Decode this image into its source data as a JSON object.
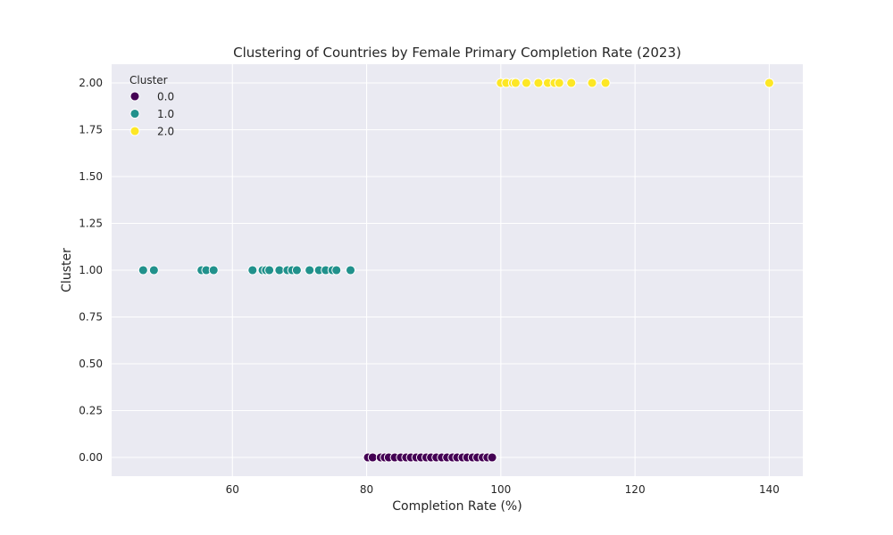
{
  "chart_data": {
    "type": "scatter",
    "title": "Clustering of Countries by Female Primary Completion Rate (2023)",
    "xlabel": "Completion Rate (%)",
    "ylabel": "Cluster",
    "xlim": [
      42,
      145
    ],
    "ylim": [
      -0.1,
      2.1
    ],
    "xticks": [
      60,
      80,
      100,
      120,
      140
    ],
    "yticks": [
      0.0,
      0.25,
      0.5,
      0.75,
      1.0,
      1.25,
      1.5,
      1.75,
      2.0
    ],
    "ytick_labels": [
      "0.00",
      "0.25",
      "0.50",
      "0.75",
      "1.00",
      "1.25",
      "1.50",
      "1.75",
      "2.00"
    ],
    "grid": true,
    "legend": {
      "title": "Cluster",
      "placement": "top-left",
      "entries": [
        "0.0",
        "1.0",
        "2.0"
      ]
    },
    "series": [
      {
        "name": "0.0",
        "color": "#440154",
        "x": [
          80.2,
          80.9,
          82.1,
          82.7,
          83.3,
          84.2,
          85.1,
          85.9,
          86.6,
          87.4,
          88.1,
          88.9,
          89.6,
          90.4,
          91.2,
          92.0,
          92.8,
          93.5,
          94.3,
          95.0,
          95.8,
          96.5,
          97.3,
          98.0,
          98.7
        ],
        "y": [
          0,
          0,
          0,
          0,
          0,
          0,
          0,
          0,
          0,
          0,
          0,
          0,
          0,
          0,
          0,
          0,
          0,
          0,
          0,
          0,
          0,
          0,
          0,
          0,
          0
        ]
      },
      {
        "name": "1.0",
        "color": "#21918c",
        "x": [
          46.7,
          48.3,
          55.4,
          56.1,
          57.2,
          63.0,
          64.5,
          65.0,
          65.5,
          67.0,
          68.2,
          68.9,
          69.6,
          71.5,
          72.9,
          73.9,
          74.9,
          75.5,
          77.6
        ],
        "y": [
          1,
          1,
          1,
          1,
          1,
          1,
          1,
          1,
          1,
          1,
          1,
          1,
          1,
          1,
          1,
          1,
          1,
          1,
          1
        ]
      },
      {
        "name": "2.0",
        "color": "#fde725",
        "x": [
          100.0,
          100.8,
          101.8,
          102.2,
          103.8,
          105.6,
          107.0,
          108.0,
          108.7,
          110.5,
          113.6,
          115.6,
          140.0
        ],
        "y": [
          2,
          2,
          2,
          2,
          2,
          2,
          2,
          2,
          2,
          2,
          2,
          2,
          2
        ]
      }
    ]
  }
}
